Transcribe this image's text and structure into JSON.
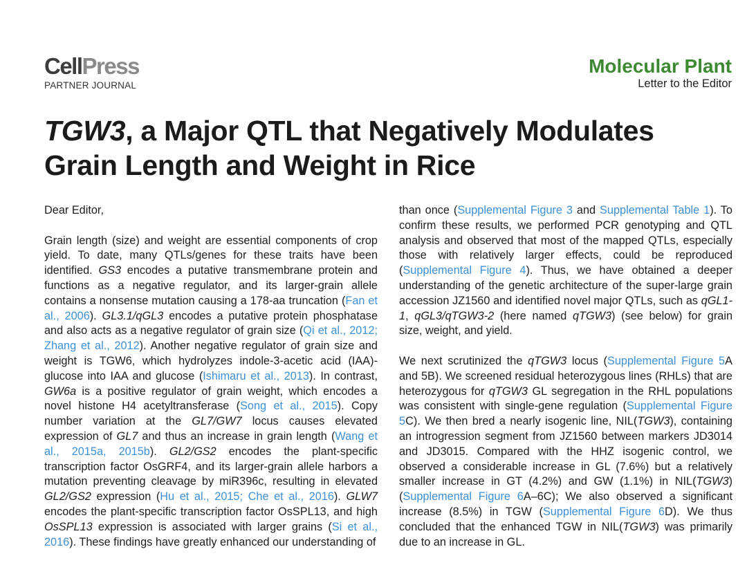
{
  "header": {
    "logo": [
      "Cell",
      "Press"
    ],
    "logo_sub": "PARTNER JOURNAL",
    "journal": "Molecular Plant",
    "section": "Letter to the Editor"
  },
  "title": {
    "lines": [
      [
        {
          "text": "TGW3",
          "em": true
        },
        {
          "text": ", a Major QTL that Negatively Modulates"
        }
      ],
      [
        {
          "text": "Grain Length and Weight in Rice"
        }
      ]
    ]
  },
  "columns": [
    [
      [
        {
          "text": "Dear Editor,"
        }
      ],
      [
        {
          "text": "Grain length (size) and weight are essential components of crop yield. To date, many QTLs/genes for these traits have been identified. "
        },
        {
          "text": "GS3",
          "em": true
        },
        {
          "text": " encodes a putative transmembrane protein and functions as a negative regulator, and its larger-grain allele contains a nonsense mutation causing a 178-aa truncation ("
        },
        {
          "text": "Fan et al., 2006",
          "link": true
        },
        {
          "text": "). "
        },
        {
          "text": "GL3.1/qGL3",
          "em": true
        },
        {
          "text": " encodes a putative protein phosphatase and also acts as a negative regulator of grain size ("
        },
        {
          "text": "Qi et al., 2012; Zhang et al., 2012",
          "link": true
        },
        {
          "text": "). Another negative regulator of grain size and weight is TGW6, which hydrolyzes indole-3-acetic acid (IAA)-glucose into IAA and glucose ("
        },
        {
          "text": "Ishimaru et al., 2013",
          "link": true
        },
        {
          "text": "). In contrast, "
        },
        {
          "text": "GW6a",
          "em": true
        },
        {
          "text": " is a positive regulator of grain weight, which encodes a novel histone H4 acetyltransferase ("
        },
        {
          "text": "Song et al., 2015",
          "link": true
        },
        {
          "text": "). Copy number variation at the "
        },
        {
          "text": "GL7/GW7",
          "em": true
        },
        {
          "text": " locus causes elevated expression of "
        },
        {
          "text": "GL7",
          "em": true
        },
        {
          "text": " and thus an increase in grain length ("
        },
        {
          "text": "Wang et al., 2015a, 2015b",
          "link": true
        },
        {
          "text": "). "
        },
        {
          "text": "GL2/GS2",
          "em": true
        },
        {
          "text": " encodes the plant-specific transcription factor OsGRF4, and its larger-grain allele harbors a mutation preventing cleavage by miR396c, resulting in elevated "
        },
        {
          "text": "GL2/GS2",
          "em": true
        },
        {
          "text": " expression ("
        },
        {
          "text": "Hu et al., 2015; Che et al., 2016",
          "link": true
        },
        {
          "text": "). "
        },
        {
          "text": "GLW7",
          "em": true
        },
        {
          "text": " encodes the plant-specific transcription factor OsSPL13, and high "
        },
        {
          "text": "OsSPL13",
          "em": true
        },
        {
          "text": " expression is associated with larger grains ("
        },
        {
          "text": "Si et al., 2016",
          "link": true
        },
        {
          "text": "). These findings have greatly enhanced our understanding of"
        }
      ]
    ],
    [
      [
        {
          "text": "than once ("
        },
        {
          "text": "Supplemental Figure 3",
          "link": true
        },
        {
          "text": " and "
        },
        {
          "text": "Supplemental Table 1",
          "link": true
        },
        {
          "text": "). To confirm these results, we performed PCR genotyping and QTL analysis and observed that most of the mapped QTLs, especially those with relatively larger effects, could be reproduced ("
        },
        {
          "text": "Supplemental Figure 4",
          "link": true
        },
        {
          "text": "). Thus, we have obtained a deeper understanding of the genetic architecture of the super-large grain accession JZ1560 and identified novel major QTLs, such as "
        },
        {
          "text": "qGL1-1",
          "em": true
        },
        {
          "text": ", "
        },
        {
          "text": "qGL3/qTGW3-2",
          "em": true
        },
        {
          "text": " (here named "
        },
        {
          "text": "qTGW3",
          "em": true
        },
        {
          "text": ") (see below) for grain size, weight, and yield."
        }
      ],
      [
        {
          "text": "We next scrutinized the "
        },
        {
          "text": "qTGW3",
          "em": true
        },
        {
          "text": " locus ("
        },
        {
          "text": "Supplemental Figure 5",
          "link": true
        },
        {
          "text": "A and 5B). We screened residual heterozygous lines (RHLs) that are heterozygous for "
        },
        {
          "text": "qTGW3",
          "em": true
        },
        {
          "text": " GL segregation in the RHL populations was consistent with single-gene regulation ("
        },
        {
          "text": "Supplemental Figure 5",
          "link": true
        },
        {
          "text": "C). We then bred a nearly isogenic line, NIL("
        },
        {
          "text": "TGW3",
          "em": true
        },
        {
          "text": "), containing an introgression segment from JZ1560 between markers JD3014 and JD3015. Compared with the HHZ isogenic control, we observed a considerable increase in GL (7.6%) but a relatively smaller increase in GT (4.2%) and GW (1.1%) in NIL("
        },
        {
          "text": "TGW3",
          "em": true
        },
        {
          "text": ") ("
        },
        {
          "text": "Supplemental Figure 6",
          "link": true
        },
        {
          "text": "A–6C); We also observed a significant increase (8.5%) in TGW ("
        },
        {
          "text": "Supplemental Figure 6",
          "link": true
        },
        {
          "text": "D). We thus concluded that the enhanced TGW in NIL("
        },
        {
          "text": "TGW3",
          "em": true
        },
        {
          "text": ") was primarily due to an increase in GL."
        }
      ]
    ]
  ]
}
